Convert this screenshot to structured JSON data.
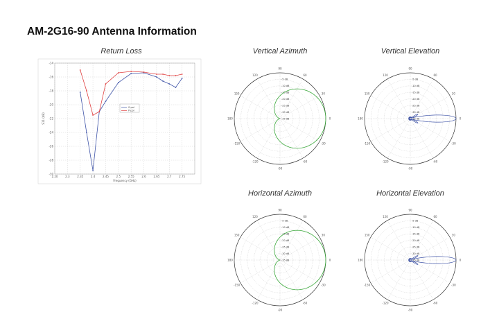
{
  "page": {
    "title": "AM-2G16-90 Antenna Information"
  },
  "colors": {
    "blue": "#4055a8",
    "red": "#e04040",
    "green": "#3aa83a",
    "grid": "#cccccc"
  },
  "chart_data": [
    {
      "type": "line",
      "title": "Return Loss",
      "xlabel": "Frequency (GHz)",
      "ylabel": "S11 (dB)",
      "xlim": [
        2.2,
        2.75
      ],
      "ylim": [
        -30,
        -14
      ],
      "xticks": [
        "2.20",
        "2.3",
        "2.35",
        "2.4",
        "2.45",
        "2.5",
        "2.55",
        "2.6",
        "2.65",
        "2.7",
        "2.75"
      ],
      "yticks": [
        "-14",
        "-16",
        "-18",
        "-20",
        "-22",
        "-24",
        "-26",
        "-28",
        "-30"
      ],
      "legend_position": "center",
      "series": [
        {
          "name": "S-pol",
          "color": "#4055a8",
          "x": [
            2.3,
            2.325,
            2.35,
            2.375,
            2.4,
            2.45,
            2.5,
            2.55,
            2.6,
            2.625,
            2.65,
            2.675,
            2.7
          ],
          "y": [
            -18.2,
            -24.0,
            -29.5,
            -21.0,
            -19.5,
            -16.8,
            -15.5,
            -15.4,
            -16.0,
            -16.6,
            -17.0,
            -17.5,
            -16.2
          ]
        },
        {
          "name": "P-pol",
          "color": "#e04040",
          "x": [
            2.3,
            2.325,
            2.35,
            2.375,
            2.4,
            2.45,
            2.5,
            2.55,
            2.6,
            2.625,
            2.65,
            2.675,
            2.7
          ],
          "y": [
            -15.0,
            -18.0,
            -21.5,
            -21.0,
            -17.0,
            -15.4,
            -15.2,
            -15.3,
            -15.6,
            -15.6,
            -15.8,
            -15.8,
            -15.6
          ]
        }
      ]
    },
    {
      "type": "polar",
      "title": "Vertical Azimuth",
      "pattern": "cardioid",
      "color": "#3aa83a",
      "ring_labels": [
        "-5 dB",
        "-10 dB",
        "-15 dB",
        "-20 dB",
        "-25 dB",
        "-30 dB",
        "-35 dB"
      ],
      "angle_labels": [
        "90",
        "120",
        "150",
        "180",
        "-150",
        "-120",
        "-90",
        "-60",
        "-30",
        "0",
        "30",
        "60"
      ]
    },
    {
      "type": "polar",
      "title": "Vertical Elevation",
      "pattern": "narrow-beam",
      "color": "#4055a8",
      "ring_labels": [
        "-5 dB",
        "-10 dB",
        "-15 dB",
        "-20 dB",
        "-25 dB",
        "-30 dB",
        "-35 dB"
      ],
      "angle_labels": [
        "90",
        "120",
        "150",
        "180",
        "-150",
        "-120",
        "-90",
        "-60",
        "-30",
        "0",
        "30",
        "60"
      ]
    },
    {
      "type": "polar",
      "title": "Horizontal Azimuth",
      "pattern": "cardioid",
      "color": "#3aa83a",
      "ring_labels": [
        "-5 dB",
        "-10 dB",
        "-15 dB",
        "-20 dB",
        "-25 dB",
        "-30 dB",
        "-35 dB"
      ],
      "angle_labels": [
        "90",
        "120",
        "150",
        "180",
        "-150",
        "-120",
        "-90",
        "-60",
        "-30",
        "0",
        "30",
        "60"
      ]
    },
    {
      "type": "polar",
      "title": "Horizontal Elevation",
      "pattern": "narrow-beam",
      "color": "#4055a8",
      "ring_labels": [
        "-5 dB",
        "-10 dB",
        "-15 dB",
        "-20 dB",
        "-25 dB",
        "-30 dB",
        "-35 dB"
      ],
      "angle_labels": [
        "90",
        "120",
        "150",
        "180",
        "-150",
        "-120",
        "-90",
        "-60",
        "-30",
        "0",
        "30",
        "60"
      ]
    }
  ]
}
